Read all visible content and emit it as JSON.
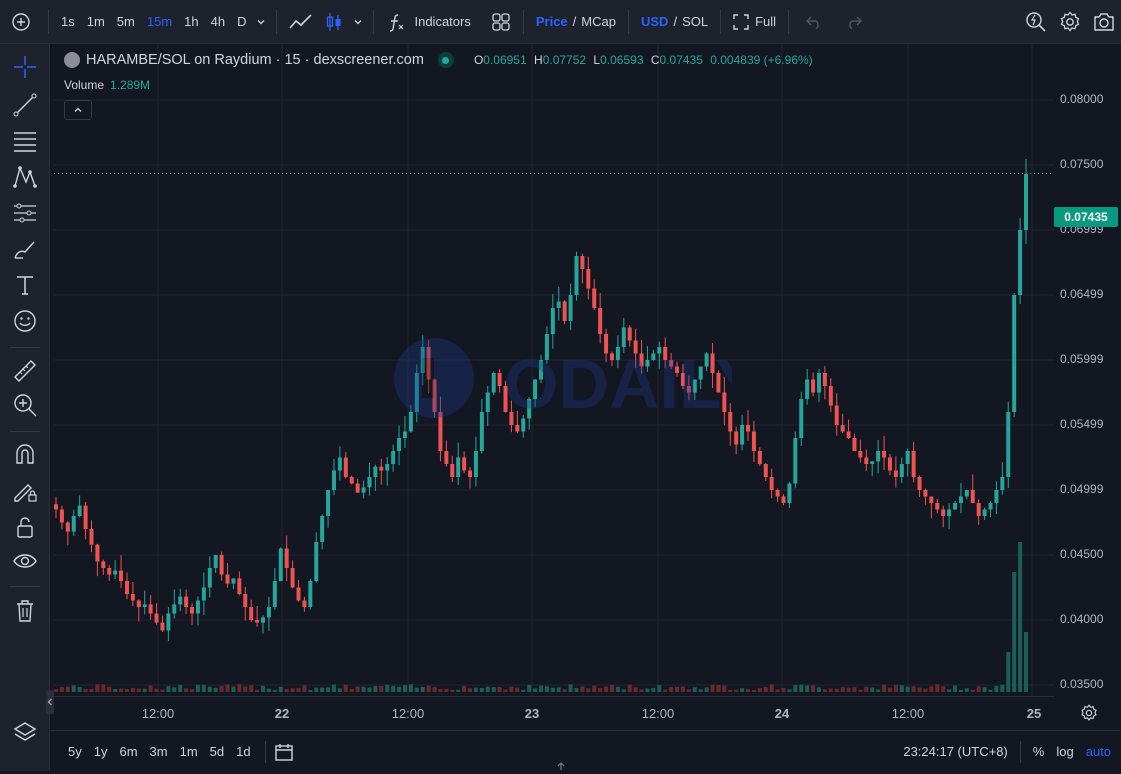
{
  "toolbar": {
    "timeframes": [
      "1s",
      "1m",
      "5m",
      "15m",
      "1h",
      "4h",
      "D"
    ],
    "active_timeframe": "15m",
    "indicators_label": "Indicators",
    "price_label": "Price",
    "mcap_label": "MCap",
    "usd_label": "USD",
    "sol_label": "SOL",
    "slash": "/",
    "full_label": "Full"
  },
  "legend": {
    "title": "HARAMBE/SOL on Raydium · 15 · dexscreener.com",
    "o_key": "O",
    "o": "0.06951",
    "h_key": "H",
    "h": "0.07752",
    "l_key": "L",
    "l": "0.06593",
    "c_key": "C",
    "c": "0.07435",
    "change": "0.004839 (+6.96%)",
    "volume_label": "Volume",
    "volume_value": "1.289M"
  },
  "price_axis": {
    "labels": [
      "0.08000",
      "0.07500",
      "0.06999",
      "0.06499",
      "0.05999",
      "0.05499",
      "0.04999",
      "0.04500",
      "0.04000",
      "0.03500"
    ],
    "current_price": "0.07435"
  },
  "time_axis": {
    "labels": [
      "12:00",
      "22",
      "12:00",
      "23",
      "12:00",
      "24",
      "12:00",
      "25"
    ]
  },
  "bottom": {
    "ranges": [
      "5y",
      "1y",
      "6m",
      "3m",
      "1m",
      "5d",
      "1d"
    ],
    "clock": "23:24:17 (UTC+8)",
    "percent_label": "%",
    "log_label": "log",
    "auto_label": "auto"
  },
  "watermark_text": "ODAILY",
  "colors": {
    "up": "#26a69a",
    "down": "#ef5350",
    "accent": "#2962ff",
    "background": "#131722",
    "panel": "#1e222d"
  },
  "chart_data": {
    "type": "candlestick",
    "pair": "HARAMBE/SOL",
    "interval": "15",
    "ylim": [
      0.034,
      0.0815
    ],
    "x_labels": [
      "12:00",
      "22",
      "12:00",
      "23",
      "12:00",
      "24",
      "12:00",
      "25"
    ],
    "close_path": [
      0.0485,
      0.0475,
      0.0468,
      0.048,
      0.0488,
      0.047,
      0.0458,
      0.0445,
      0.044,
      0.0435,
      0.0438,
      0.043,
      0.042,
      0.0415,
      0.041,
      0.0412,
      0.0405,
      0.0398,
      0.0392,
      0.0405,
      0.0412,
      0.0418,
      0.041,
      0.0405,
      0.0415,
      0.0425,
      0.044,
      0.045,
      0.0435,
      0.0428,
      0.0432,
      0.042,
      0.041,
      0.04,
      0.0398,
      0.0402,
      0.041,
      0.043,
      0.0455,
      0.044,
      0.0425,
      0.0415,
      0.041,
      0.043,
      0.046,
      0.048,
      0.05,
      0.0515,
      0.0525,
      0.051,
      0.0505,
      0.0498,
      0.0502,
      0.051,
      0.0518,
      0.0515,
      0.052,
      0.053,
      0.054,
      0.0545,
      0.056,
      0.059,
      0.061,
      0.0585,
      0.056,
      0.053,
      0.052,
      0.051,
      0.0525,
      0.0515,
      0.051,
      0.053,
      0.056,
      0.0575,
      0.059,
      0.058,
      0.056,
      0.055,
      0.0545,
      0.0555,
      0.057,
      0.0585,
      0.06,
      0.062,
      0.064,
      0.0645,
      0.063,
      0.065,
      0.068,
      0.067,
      0.0655,
      0.064,
      0.062,
      0.0605,
      0.06,
      0.061,
      0.0625,
      0.0615,
      0.0605,
      0.0595,
      0.06,
      0.0605,
      0.061,
      0.06,
      0.0595,
      0.059,
      0.058,
      0.0575,
      0.0585,
      0.0595,
      0.0605,
      0.059,
      0.0575,
      0.056,
      0.0545,
      0.0535,
      0.055,
      0.0545,
      0.053,
      0.052,
      0.051,
      0.05,
      0.0495,
      0.049,
      0.0505,
      0.054,
      0.057,
      0.0585,
      0.0575,
      0.059,
      0.058,
      0.0565,
      0.055,
      0.0545,
      0.054,
      0.053,
      0.0525,
      0.052,
      0.0522,
      0.053,
      0.0525,
      0.0515,
      0.051,
      0.052,
      0.053,
      0.051,
      0.05,
      0.0495,
      0.049,
      0.0485,
      0.048,
      0.0485,
      0.049,
      0.0495,
      0.05,
      0.049,
      0.048,
      0.0485,
      0.049,
      0.05,
      0.051,
      0.056,
      0.065,
      0.07,
      0.0743
    ]
  }
}
